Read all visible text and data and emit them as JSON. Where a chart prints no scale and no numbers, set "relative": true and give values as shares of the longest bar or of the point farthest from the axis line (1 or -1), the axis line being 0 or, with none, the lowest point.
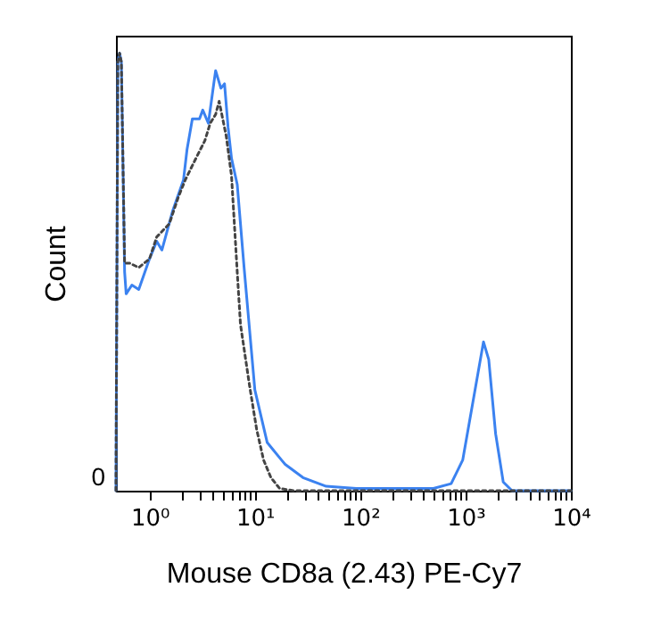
{
  "chart_data": {
    "type": "line",
    "xlabel": "Mouse CD8a (2.43) PE-Cy7",
    "ylabel": "Count",
    "relative": true,
    "annotations": [
      "0"
    ],
    "log": "x",
    "xlim": [
      0.48,
      10000
    ],
    "xticks": [
      {
        "value": 1,
        "label": "10⁰"
      },
      {
        "value": 2,
        "label": null
      },
      {
        "value": 3,
        "label": null
      },
      {
        "value": 4,
        "label": null
      },
      {
        "value": 5,
        "label": null
      },
      {
        "value": 6,
        "label": null
      },
      {
        "value": 7,
        "label": null
      },
      {
        "value": 8,
        "label": null
      },
      {
        "value": 9,
        "label": null
      },
      {
        "value": 10,
        "label": "10¹"
      },
      {
        "value": 20,
        "label": null
      },
      {
        "value": 30,
        "label": null
      },
      {
        "value": 40,
        "label": null
      },
      {
        "value": 50,
        "label": null
      },
      {
        "value": 60,
        "label": null
      },
      {
        "value": 70,
        "label": null
      },
      {
        "value": 80,
        "label": null
      },
      {
        "value": 90,
        "label": null
      },
      {
        "value": 100,
        "label": "10²"
      },
      {
        "value": 200,
        "label": null
      },
      {
        "value": 300,
        "label": null
      },
      {
        "value": 400,
        "label": null
      },
      {
        "value": 500,
        "label": null
      },
      {
        "value": 600,
        "label": null
      },
      {
        "value": 700,
        "label": null
      },
      {
        "value": 800,
        "label": null
      },
      {
        "value": 900,
        "label": null
      },
      {
        "value": 1000,
        "label": "10³"
      },
      {
        "value": 2000,
        "label": null
      },
      {
        "value": 3000,
        "label": null
      },
      {
        "value": 4000,
        "label": null
      },
      {
        "value": 5000,
        "label": null
      },
      {
        "value": 6000,
        "label": null
      },
      {
        "value": 7000,
        "label": null
      },
      {
        "value": 8000,
        "label": null
      },
      {
        "value": 9000,
        "label": null
      },
      {
        "value": 10000,
        "label": "10⁴"
      }
    ],
    "grid": false,
    "marker": "none",
    "series": [
      {
        "color": "#3b82f0",
        "line_style": "solid",
        "x": [
          0.48,
          0.5,
          0.52,
          0.54,
          0.58,
          0.6,
          0.68,
          0.79,
          1.0,
          1.17,
          1.31,
          1.66,
          2.1,
          2.27,
          2.55,
          2.98,
          3.2,
          3.62,
          4.07,
          4.24,
          4.76,
          5.15,
          5.57,
          6.0,
          6.8,
          7.9,
          10,
          13.1,
          17.9,
          19.4,
          28.6,
          47.5,
          92,
          495,
          730,
          940,
          1230,
          1480,
          1660,
          1930,
          2280,
          2760,
          10000
        ],
        "values": [
          0,
          0.98,
          1.0,
          0.98,
          0.5,
          0.45,
          0.47,
          0.46,
          0.53,
          0.57,
          0.55,
          0.64,
          0.71,
          0.78,
          0.85,
          0.85,
          0.87,
          0.84,
          0.93,
          0.96,
          0.92,
          0.93,
          0.83,
          0.76,
          0.7,
          0.51,
          0.23,
          0.11,
          0.07,
          0.06,
          0.03,
          0.01,
          0.005,
          0.005,
          0.016,
          0.07,
          0.23,
          0.34,
          0.3,
          0.13,
          0.02,
          0,
          0
        ]
      },
      {
        "color": "#444444",
        "line_style": "dotted",
        "x": [
          0.48,
          0.5,
          0.52,
          0.54,
          0.58,
          0.65,
          0.79,
          1.0,
          1.17,
          1.54,
          1.87,
          2.18,
          2.76,
          3.35,
          3.77,
          4.24,
          4.58,
          5.35,
          6.0,
          6.8,
          7.3,
          8.9,
          10.4,
          12.1,
          14.2,
          17.2,
          23.5,
          10000
        ],
        "values": [
          0,
          0.98,
          1.0,
          0.98,
          0.52,
          0.52,
          0.51,
          0.53,
          0.58,
          0.61,
          0.67,
          0.71,
          0.76,
          0.8,
          0.84,
          0.86,
          0.89,
          0.81,
          0.72,
          0.5,
          0.38,
          0.24,
          0.14,
          0.07,
          0.03,
          0.005,
          0,
          0
        ]
      }
    ]
  }
}
